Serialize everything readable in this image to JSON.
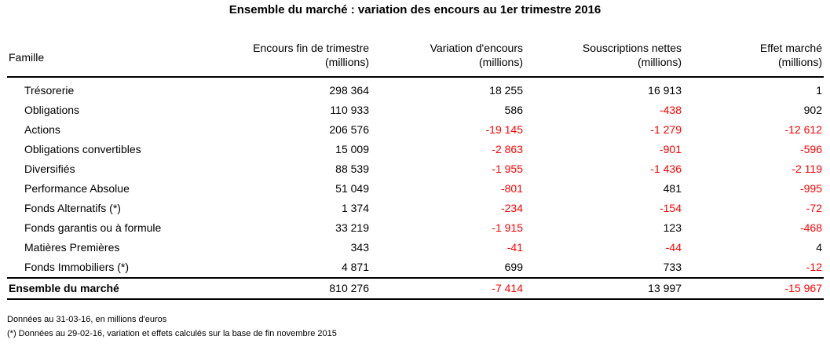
{
  "title": "Ensemble du marché : variation des encours au 1er trimestre 2016",
  "headers": {
    "famille": "Famille",
    "encours_l1": "Encours fin de trimestre",
    "encours_l2": "(millions)",
    "variation_l1": "Variation d'encours",
    "variation_l2": "(millions)",
    "souscriptions_l1": "Souscriptions nettes",
    "souscriptions_l2": "(millions)",
    "effet_l1": "Effet marché",
    "effet_l2": "(millions)"
  },
  "rows": [
    {
      "famille": "Trésorerie",
      "encours": "298 364",
      "variation": "18 255",
      "souscriptions": "16 913",
      "effet": "1"
    },
    {
      "famille": "Obligations",
      "encours": "110 933",
      "variation": "586",
      "souscriptions": "-438",
      "effet": "902"
    },
    {
      "famille": "Actions",
      "encours": "206 576",
      "variation": "-19 145",
      "souscriptions": "-1 279",
      "effet": "-12 612"
    },
    {
      "famille": "Obligations convertibles",
      "encours": "15 009",
      "variation": "-2 863",
      "souscriptions": "-901",
      "effet": "-596"
    },
    {
      "famille": "Diversifiés",
      "encours": "88 539",
      "variation": "-1 955",
      "souscriptions": "-1 436",
      "effet": "-2 119"
    },
    {
      "famille": "Performance Absolue",
      "encours": "51 049",
      "variation": "-801",
      "souscriptions": "481",
      "effet": "-995"
    },
    {
      "famille": "Fonds Alternatifs (*)",
      "encours": "1 374",
      "variation": "-234",
      "souscriptions": "-154",
      "effet": "-72"
    },
    {
      "famille": "Fonds garantis ou à formule",
      "encours": "33 219",
      "variation": "-1 915",
      "souscriptions": "123",
      "effet": "-468"
    },
    {
      "famille": "Matières Premières",
      "encours": "343",
      "variation": "-41",
      "souscriptions": "-44",
      "effet": "4"
    },
    {
      "famille": "Fonds Immobiliers (*)",
      "encours": "4 871",
      "variation": "699",
      "souscriptions": "733",
      "effet": "-12"
    }
  ],
  "total": {
    "famille": "Ensemble du marché",
    "encours": "810 276",
    "variation": "-7 414",
    "souscriptions": "13 997",
    "effet": "-15 967"
  },
  "negative_color": "#ff0000",
  "notes": {
    "line1": "Données au 31-03-16, en millions d'euros",
    "line2": "(*) Données au 29-02-16, variation et effets calculés sur la base de fin novembre 2015"
  }
}
